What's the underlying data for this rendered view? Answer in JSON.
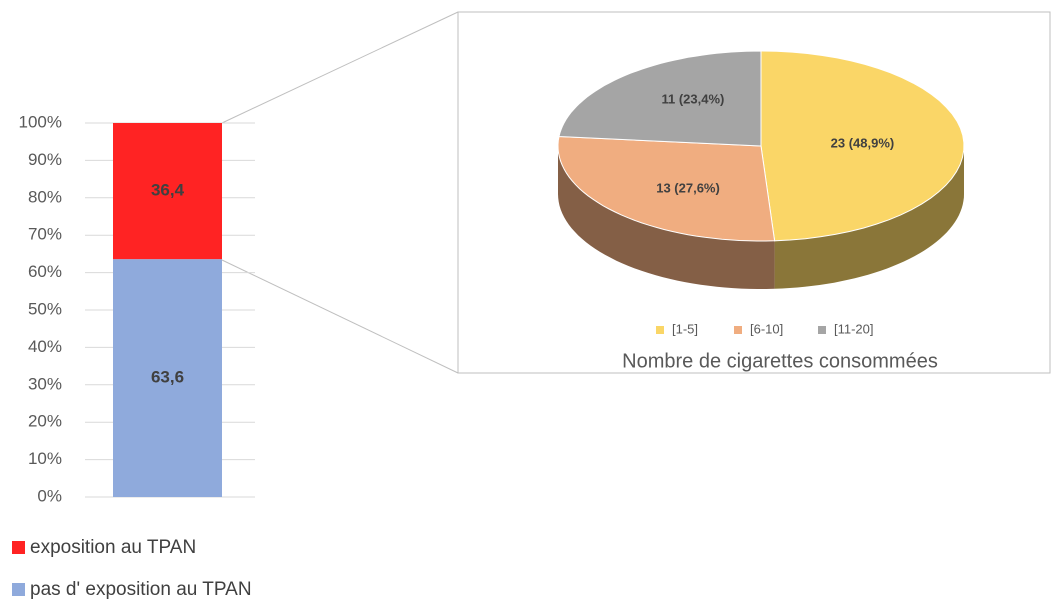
{
  "chart_data": [
    {
      "type": "stacked_bar",
      "ylim": [
        0,
        100
      ],
      "yticks": [
        {
          "value": 0,
          "label": "0%"
        },
        {
          "value": 10,
          "label": "10%"
        },
        {
          "value": 20,
          "label": "20%"
        },
        {
          "value": 30,
          "label": "30%"
        },
        {
          "value": 40,
          "label": "40%"
        },
        {
          "value": 50,
          "label": "50%"
        },
        {
          "value": 60,
          "label": "60%"
        },
        {
          "value": 70,
          "label": "70%"
        },
        {
          "value": 80,
          "label": "80%"
        },
        {
          "value": 90,
          "label": "90%"
        },
        {
          "value": 100,
          "label": "100%"
        }
      ],
      "grid": true,
      "series": [
        {
          "name": "exposition au TPAN",
          "color": "#ff2323",
          "values": [
            36.4
          ],
          "value_labels": [
            "36,4"
          ]
        },
        {
          "name": "pas d' exposition au TPAN",
          "color": "#8faadc",
          "values": [
            63.6
          ],
          "value_labels": [
            "63,6"
          ]
        }
      ]
    },
    {
      "type": "pie3d",
      "title": "Nombre de cigarettes consommées",
      "categories": [
        "[1-5]",
        "[6-10]",
        "[11-20]"
      ],
      "values": [
        23,
        13,
        11
      ],
      "value_labels": [
        "23 (48,9%)",
        "13 (27,6%)",
        "11 (23,4%)"
      ],
      "colors": [
        "#fad667",
        "#f0ad80",
        "#a5a5a5"
      ]
    }
  ]
}
